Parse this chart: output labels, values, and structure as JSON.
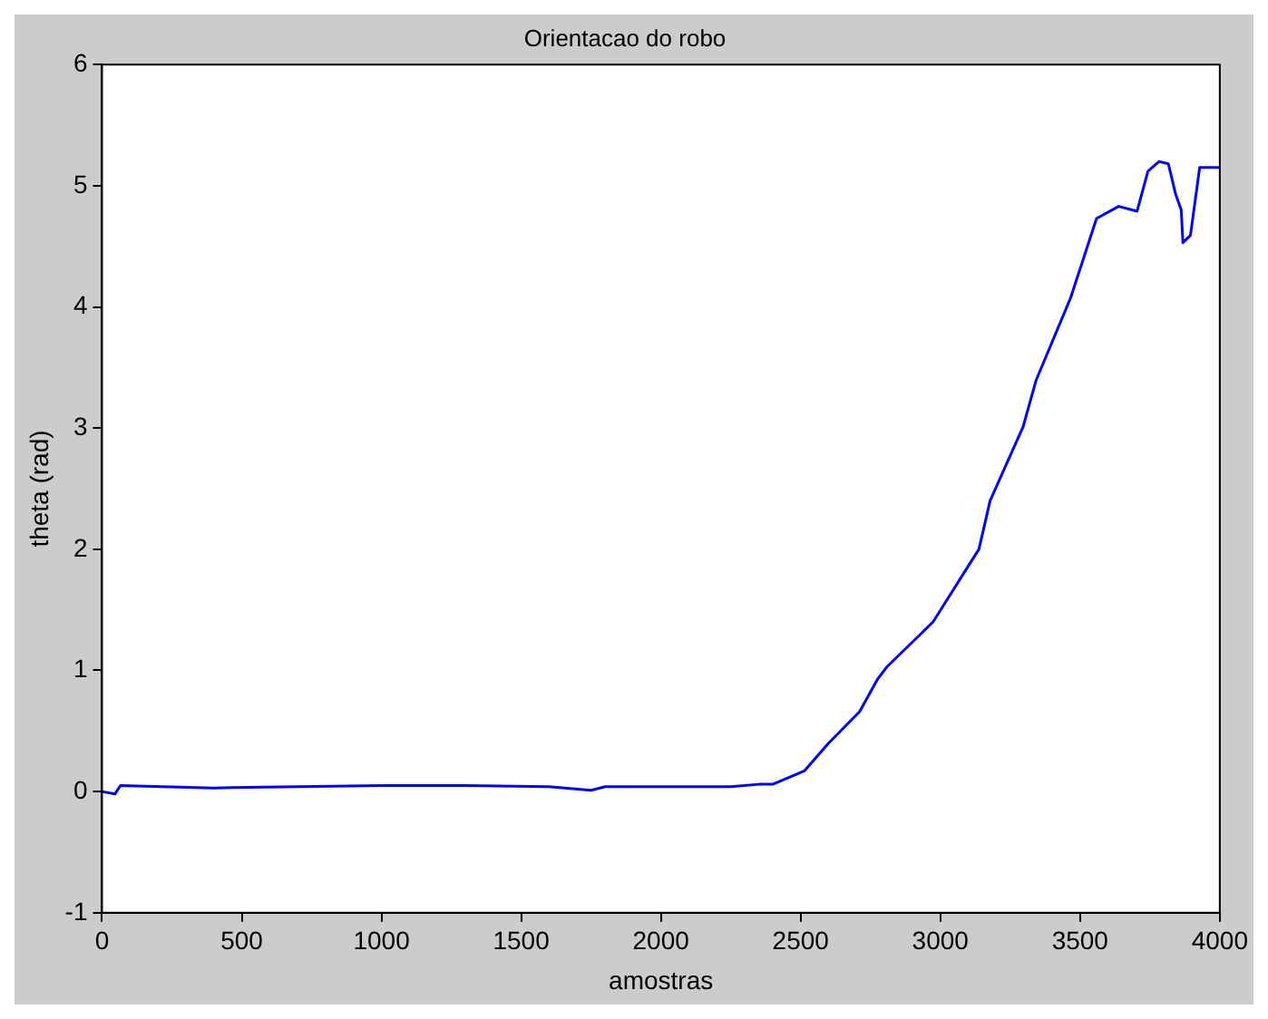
{
  "chart_data": {
    "type": "line",
    "title": "Orientacao do robo",
    "xlabel": "amostras",
    "ylabel": "theta (rad)",
    "xlim": [
      0,
      4000
    ],
    "xticks": [
      0,
      500,
      1000,
      1500,
      2000,
      2500,
      3000,
      3500,
      4000
    ],
    "ylim": [
      -1,
      6
    ],
    "yticks": [
      -1,
      0,
      1,
      2,
      3,
      4,
      5,
      6
    ],
    "grid": false,
    "legend": false,
    "marker": "none",
    "line_style": "solid",
    "series": [
      {
        "color": "#0000ff",
        "x": [
          0,
          46,
          66,
          400,
          700,
          1000,
          1300,
          1600,
          1750,
          1800,
          2000,
          2250,
          2350,
          2400,
          2513,
          2600,
          2711,
          2776,
          2809,
          2974,
          3105,
          3138,
          3178,
          3296,
          3342,
          3467,
          3559,
          3638,
          3704,
          3743,
          3783,
          3816,
          3842,
          3862,
          3868,
          3895,
          3928,
          3993,
          4000
        ],
        "values": [
          0.0,
          -0.02,
          0.05,
          0.03,
          0.04,
          0.05,
          0.05,
          0.04,
          0.01,
          0.04,
          0.04,
          0.04,
          0.06,
          0.06,
          0.17,
          0.4,
          0.66,
          0.93,
          1.03,
          1.4,
          1.88,
          2.0,
          2.4,
          3.01,
          3.39,
          4.08,
          4.73,
          4.83,
          4.79,
          5.12,
          5.2,
          5.18,
          4.93,
          4.8,
          4.53,
          4.59,
          5.15,
          5.15,
          5.15
        ]
      }
    ]
  }
}
